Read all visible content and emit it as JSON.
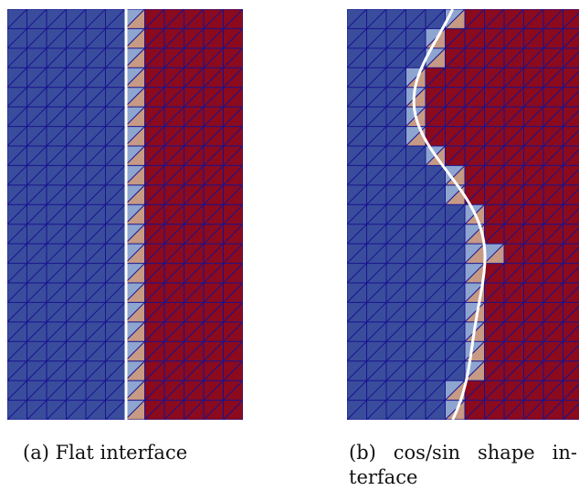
{
  "figure": {
    "subfigures": [
      {
        "id": "a",
        "caption": "(a) Flat interface",
        "interface": "flat"
      },
      {
        "id": "b",
        "caption": "(b) cos/sin shape interface",
        "caption_lines": [
          "(b) cos/sin shape in-",
          "terface"
        ],
        "interface": "cos/sin"
      }
    ],
    "colors": {
      "phase_one": "#3a4d9d",
      "phase_two": "#8b0a1e",
      "cut_light_blue": "#8ea5cf",
      "cut_tan": "#c69a84",
      "mesh_lines": "#18138f",
      "interface_line": "#ffffff"
    }
  }
}
